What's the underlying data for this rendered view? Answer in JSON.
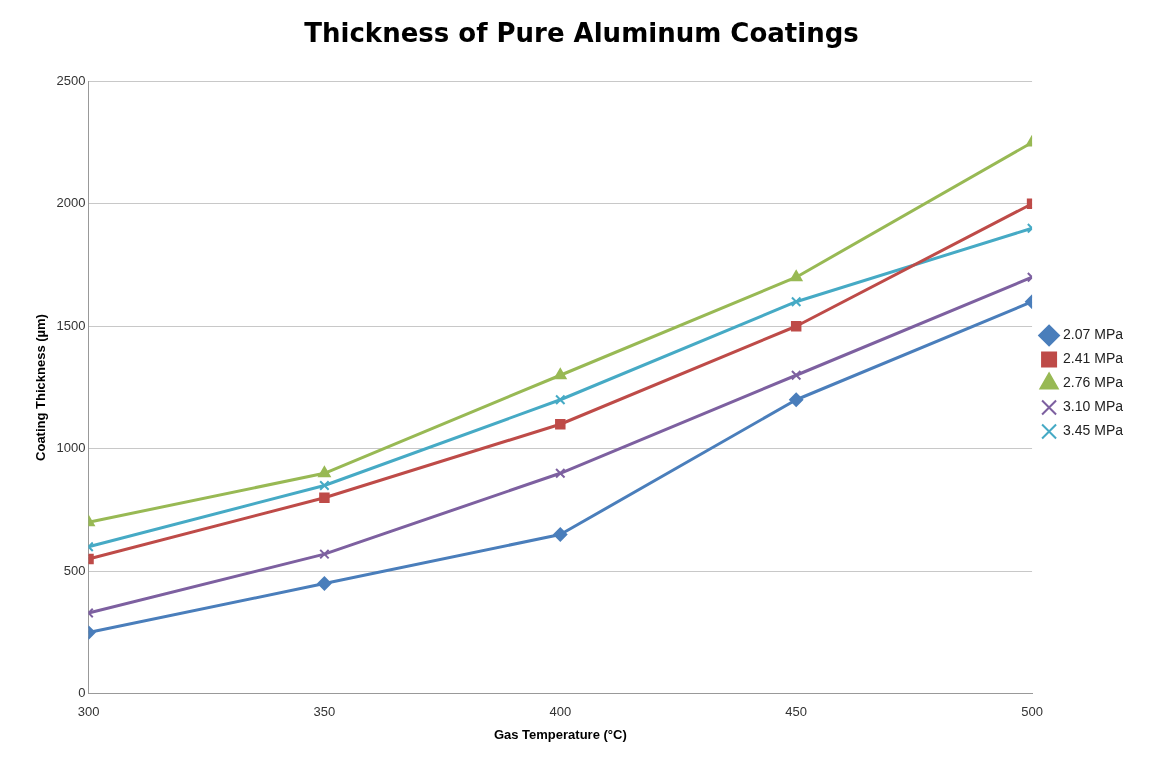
{
  "chart_data": {
    "type": "line",
    "title": "Thickness of Pure Aluminum Coatings",
    "xlabel": "Gas Temperature (°C)",
    "ylabel": "Coating Thickness (µm)",
    "x": [
      300,
      350,
      400,
      450,
      500
    ],
    "xlim": [
      300,
      500
    ],
    "xticks": [
      300,
      350,
      400,
      450,
      500
    ],
    "ylim": [
      0,
      2500
    ],
    "yticks": [
      0,
      500,
      1000,
      1500,
      2000,
      2500
    ],
    "grid": "y",
    "legend": "right",
    "series": [
      {
        "name": "2.07 MPa",
        "color": "#4a7ebb",
        "marker": "diamond",
        "values": [
          250,
          450,
          650,
          1200,
          1600
        ]
      },
      {
        "name": "2.41 MPa",
        "color": "#be4b48",
        "marker": "square",
        "values": [
          550,
          800,
          1100,
          1500,
          2000
        ]
      },
      {
        "name": "2.76 MPa",
        "color": "#98b954",
        "marker": "triangle",
        "values": [
          700,
          900,
          1300,
          1700,
          2250
        ]
      },
      {
        "name": "3.10 MPa",
        "color": "#7d60a0",
        "marker": "cross",
        "values": [
          330,
          570,
          900,
          1300,
          1700
        ]
      },
      {
        "name": "3.45 MPa",
        "color": "#46aac5",
        "marker": "cross",
        "values": [
          600,
          850,
          1200,
          1600,
          1900
        ]
      }
    ]
  }
}
